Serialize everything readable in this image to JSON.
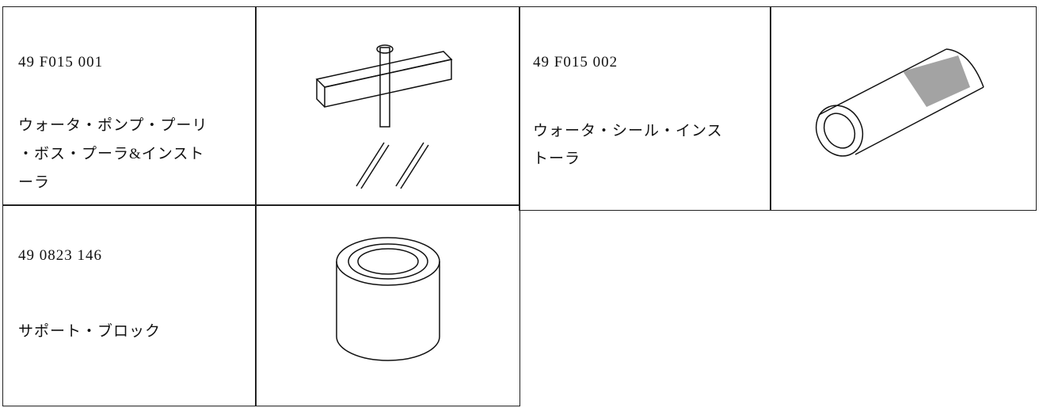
{
  "tools": [
    {
      "part_number": "49 F015 001",
      "name": [
        "ウォータ・ポンプ・プーリ",
        "・ボス・プーラ&インスト",
        "ーラ"
      ]
    },
    {
      "part_number": "49 F015 002",
      "name": [
        "ウォータ・シール・インス",
        "トーラ"
      ]
    },
    {
      "part_number": "49 0823 146",
      "name": [
        "サポート・ブロック"
      ]
    }
  ]
}
